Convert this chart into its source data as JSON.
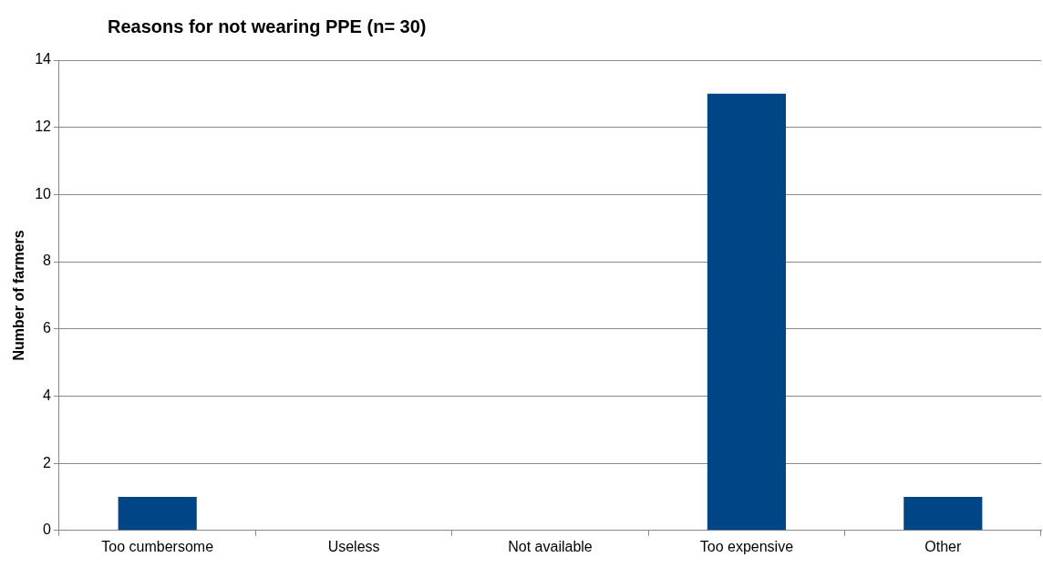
{
  "chart_data": {
    "type": "bar",
    "title": "Reasons for not wearing PPE (n= 30)",
    "ylabel": "Number of farmers",
    "categories": [
      "Too cumbersome",
      "Useless",
      "Not available",
      "Too expensive",
      "Other"
    ],
    "values": [
      1,
      0,
      0,
      13,
      1
    ],
    "color": "#004586",
    "ylim": [
      0,
      14
    ],
    "yticks": [
      0,
      2,
      4,
      6,
      8,
      10,
      12,
      14
    ],
    "grid": "y",
    "legend": false
  }
}
